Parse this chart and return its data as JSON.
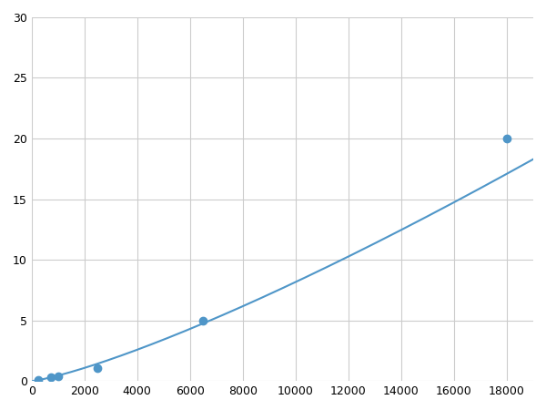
{
  "x_points": [
    250,
    750,
    1000,
    2500,
    6500,
    18000
  ],
  "y_points": [
    0.1,
    0.3,
    0.4,
    1.1,
    5.0,
    20.0
  ],
  "line_color": "#4f96c8",
  "marker_color": "#4f96c8",
  "marker_size": 6,
  "xlim": [
    0,
    19000
  ],
  "ylim": [
    0,
    30
  ],
  "xticks": [
    0,
    2000,
    4000,
    6000,
    8000,
    10000,
    12000,
    14000,
    16000,
    18000
  ],
  "yticks": [
    0,
    5,
    10,
    15,
    20,
    25,
    30
  ],
  "grid_color": "#cccccc",
  "background_color": "#ffffff",
  "linewidth": 1.5
}
